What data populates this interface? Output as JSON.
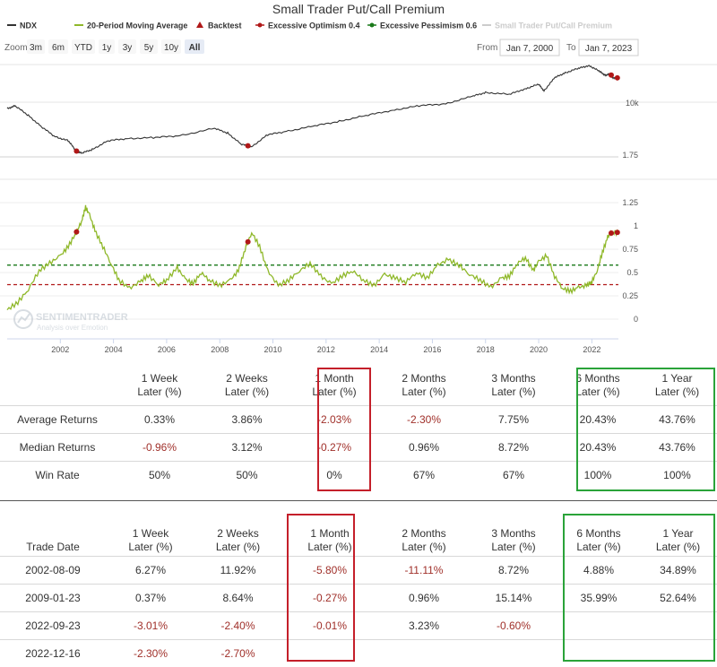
{
  "chart_data": {
    "type": "line",
    "title": "Small Trader Put/Call Premium",
    "legend": {
      "placement": "top-left",
      "items": [
        {
          "name": "NDX",
          "color": "#333333",
          "marker": "line"
        },
        {
          "name": "20-Period Moving Average",
          "color": "#8fb82a",
          "marker": "line"
        },
        {
          "name": "Backtest",
          "color": "#b01818",
          "marker": "triangle"
        },
        {
          "name": "Excessive Optimism 0.4",
          "color": "#b01818",
          "marker": "dashed"
        },
        {
          "name": "Excessive Pessimism 0.6",
          "color": "#1a7a1a",
          "marker": "dashed"
        },
        {
          "name": "Small Trader Put/Call Premium",
          "color": "#cccccc",
          "marker": "line"
        }
      ]
    },
    "zoom": {
      "label": "Zoom",
      "buttons": [
        "3m",
        "6m",
        "YTD",
        "1y",
        "3y",
        "5y",
        "10y",
        "All"
      ],
      "active": "All"
    },
    "range": {
      "from_label": "From",
      "from": "Jan 7, 2000",
      "to_label": "To",
      "to": "Jan 7, 2023"
    },
    "x_ticks": [
      "2002",
      "2004",
      "2006",
      "2008",
      "2010",
      "2012",
      "2014",
      "2016",
      "2018",
      "2020",
      "2022"
    ],
    "xlim": [
      2000.0,
      2023.0
    ],
    "ndx": {
      "name": "NDX",
      "tick_label": "10k",
      "points": [
        [
          2000.0,
          4000
        ],
        [
          2000.3,
          4400
        ],
        [
          2000.8,
          3200
        ],
        [
          2001.3,
          2200
        ],
        [
          2001.8,
          1600
        ],
        [
          2002.3,
          1400
        ],
        [
          2002.6,
          1000
        ],
        [
          2002.8,
          930
        ],
        [
          2003.2,
          1050
        ],
        [
          2003.8,
          1400
        ],
        [
          2004.5,
          1500
        ],
        [
          2005.5,
          1550
        ],
        [
          2006.5,
          1650
        ],
        [
          2007.8,
          2100
        ],
        [
          2008.3,
          1800
        ],
        [
          2008.8,
          1250
        ],
        [
          2009.2,
          1150
        ],
        [
          2009.8,
          1700
        ],
        [
          2010.5,
          1900
        ],
        [
          2011.5,
          2250
        ],
        [
          2012.5,
          2650
        ],
        [
          2013.5,
          3200
        ],
        [
          2014.5,
          3800
        ],
        [
          2015.5,
          4400
        ],
        [
          2016.5,
          4700
        ],
        [
          2017.5,
          6000
        ],
        [
          2018.0,
          6800
        ],
        [
          2018.9,
          6400
        ],
        [
          2019.5,
          7700
        ],
        [
          2020.0,
          8900
        ],
        [
          2020.2,
          7200
        ],
        [
          2020.6,
          11000
        ],
        [
          2021.0,
          13000
        ],
        [
          2021.5,
          15000
        ],
        [
          2021.9,
          16500
        ],
        [
          2022.3,
          13500
        ],
        [
          2022.5,
          12000
        ],
        [
          2022.7,
          12500
        ],
        [
          2022.8,
          11000
        ],
        [
          2023.0,
          11000
        ]
      ]
    },
    "indicator": {
      "name": "20-Period Moving Average",
      "y_ticks": [
        0,
        0.25,
        0.5,
        0.75,
        1,
        1.25,
        1.75
      ],
      "ylim": [
        -0.1,
        1.8
      ],
      "points": [
        [
          2000.0,
          0.1
        ],
        [
          2000.4,
          0.18
        ],
        [
          2000.8,
          0.32
        ],
        [
          2001.2,
          0.52
        ],
        [
          2001.6,
          0.6
        ],
        [
          2002.0,
          0.68
        ],
        [
          2002.3,
          0.78
        ],
        [
          2002.6,
          0.93
        ],
        [
          2002.8,
          1.05
        ],
        [
          2002.95,
          1.2
        ],
        [
          2003.1,
          1.12
        ],
        [
          2003.3,
          0.95
        ],
        [
          2003.6,
          0.78
        ],
        [
          2003.9,
          0.6
        ],
        [
          2004.2,
          0.42
        ],
        [
          2004.6,
          0.33
        ],
        [
          2005.0,
          0.4
        ],
        [
          2005.3,
          0.47
        ],
        [
          2005.7,
          0.37
        ],
        [
          2006.0,
          0.42
        ],
        [
          2006.4,
          0.55
        ],
        [
          2006.7,
          0.43
        ],
        [
          2007.0,
          0.38
        ],
        [
          2007.3,
          0.5
        ],
        [
          2007.6,
          0.42
        ],
        [
          2008.0,
          0.36
        ],
        [
          2008.4,
          0.42
        ],
        [
          2008.7,
          0.52
        ],
        [
          2008.95,
          0.75
        ],
        [
          2009.2,
          0.93
        ],
        [
          2009.5,
          0.78
        ],
        [
          2009.8,
          0.52
        ],
        [
          2010.2,
          0.36
        ],
        [
          2010.6,
          0.42
        ],
        [
          2011.0,
          0.52
        ],
        [
          2011.4,
          0.6
        ],
        [
          2011.8,
          0.46
        ],
        [
          2012.2,
          0.38
        ],
        [
          2012.6,
          0.46
        ],
        [
          2013.0,
          0.52
        ],
        [
          2013.4,
          0.42
        ],
        [
          2013.8,
          0.36
        ],
        [
          2014.2,
          0.48
        ],
        [
          2014.6,
          0.44
        ],
        [
          2015.0,
          0.4
        ],
        [
          2015.4,
          0.5
        ],
        [
          2015.8,
          0.44
        ],
        [
          2016.2,
          0.58
        ],
        [
          2016.6,
          0.64
        ],
        [
          2017.0,
          0.58
        ],
        [
          2017.4,
          0.48
        ],
        [
          2017.8,
          0.42
        ],
        [
          2018.2,
          0.34
        ],
        [
          2018.6,
          0.44
        ],
        [
          2018.9,
          0.46
        ],
        [
          2019.2,
          0.6
        ],
        [
          2019.5,
          0.66
        ],
        [
          2019.8,
          0.52
        ],
        [
          2020.0,
          0.62
        ],
        [
          2020.3,
          0.68
        ],
        [
          2020.6,
          0.46
        ],
        [
          2020.9,
          0.33
        ],
        [
          2021.2,
          0.3
        ],
        [
          2021.5,
          0.34
        ],
        [
          2021.8,
          0.36
        ],
        [
          2022.0,
          0.4
        ],
        [
          2022.2,
          0.52
        ],
        [
          2022.4,
          0.72
        ],
        [
          2022.6,
          0.88
        ],
        [
          2022.75,
          0.93
        ],
        [
          2023.0,
          0.93
        ]
      ]
    },
    "thresholds": [
      {
        "name": "Excessive Optimism 0.4",
        "value": 0.37,
        "color": "#b01818"
      },
      {
        "name": "Excessive Pessimism 0.6",
        "value": 0.58,
        "color": "#1a7a1a"
      }
    ],
    "backtest_dates": [
      2002.61,
      2009.06,
      2022.73,
      2022.96
    ]
  },
  "watermark": {
    "brand": "SENTIMENTRADER",
    "tagline": "Analysis over Emotion"
  },
  "table_summary": {
    "columns": [
      {
        "line1": "1 Week",
        "line2": "Later (%)"
      },
      {
        "line1": "2 Weeks",
        "line2": "Later (%)"
      },
      {
        "line1": "1 Month",
        "line2": "Later (%)"
      },
      {
        "line1": "2 Months",
        "line2": "Later (%)"
      },
      {
        "line1": "3 Months",
        "line2": "Later (%)"
      },
      {
        "line1": "6 Months",
        "line2": "Later (%)"
      },
      {
        "line1": "1 Year",
        "line2": "Later (%)"
      }
    ],
    "rows": [
      {
        "label": "Average Returns",
        "values": [
          "0.33%",
          "3.86%",
          "-2.03%",
          "-2.30%",
          "7.75%",
          "20.43%",
          "43.76%"
        ]
      },
      {
        "label": "Median Returns",
        "values": [
          "-0.96%",
          "3.12%",
          "-0.27%",
          "0.96%",
          "8.72%",
          "20.43%",
          "43.76%"
        ]
      },
      {
        "label": "Win Rate",
        "values": [
          "50%",
          "50%",
          "0%",
          "67%",
          "67%",
          "100%",
          "100%"
        ]
      }
    ]
  },
  "table_trades": {
    "first_header": "Trade Date",
    "columns": [
      {
        "line1": "1 Week",
        "line2": "Later (%)"
      },
      {
        "line1": "2 Weeks",
        "line2": "Later (%)"
      },
      {
        "line1": "1 Month",
        "line2": "Later (%)"
      },
      {
        "line1": "2 Months",
        "line2": "Later (%)"
      },
      {
        "line1": "3 Months",
        "line2": "Later (%)"
      },
      {
        "line1": "6 Months",
        "line2": "Later (%)"
      },
      {
        "line1": "1 Year",
        "line2": "Later (%)"
      }
    ],
    "rows": [
      {
        "date": "2002-08-09",
        "values": [
          "6.27%",
          "11.92%",
          "-5.80%",
          "-11.11%",
          "8.72%",
          "4.88%",
          "34.89%"
        ]
      },
      {
        "date": "2009-01-23",
        "values": [
          "0.37%",
          "8.64%",
          "-0.27%",
          "0.96%",
          "15.14%",
          "35.99%",
          "52.64%"
        ]
      },
      {
        "date": "2022-09-23",
        "values": [
          "-3.01%",
          "-2.40%",
          "-0.01%",
          "3.23%",
          "-0.60%",
          "",
          ""
        ]
      },
      {
        "date": "2022-12-16",
        "values": [
          "-2.30%",
          "-2.70%",
          "",
          "",
          "",
          "",
          ""
        ]
      }
    ]
  }
}
